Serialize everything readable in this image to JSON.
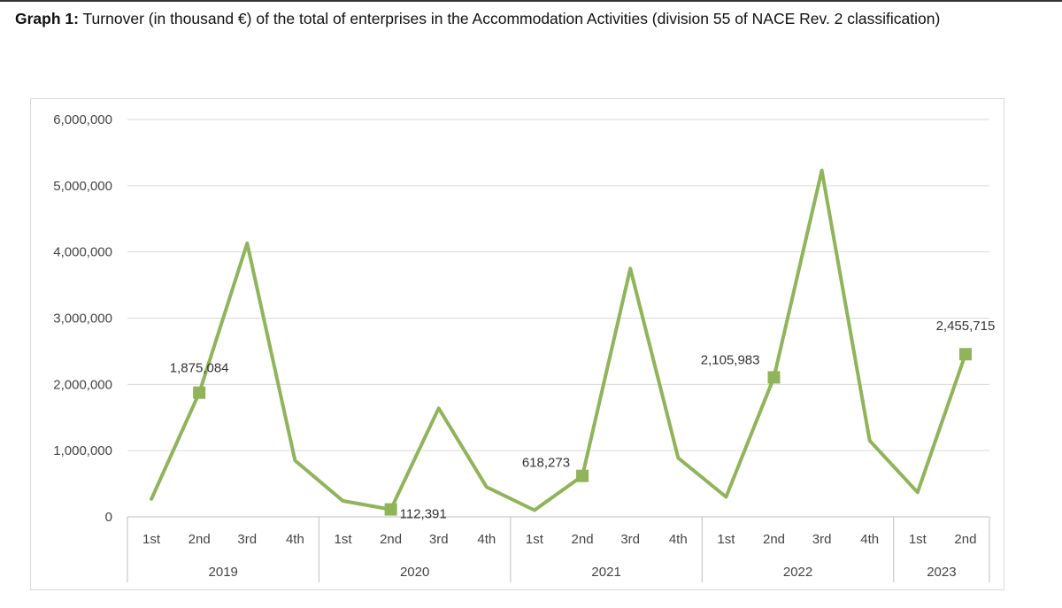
{
  "title": {
    "prefix": "Graph 1:",
    "text": "Turnover (in thousand €) of the total of enterprises in the Accommodation Activities (division 55 of NACE Rev. 2 classification)"
  },
  "colors": {
    "line": "#8fb45a",
    "grid": "#d9d9d9",
    "axis": "#bfbfbf"
  },
  "chart_data": {
    "type": "line",
    "title": "Turnover (in thousand €) of the total of enterprises in the Accommodation Activities (division 55 of NACE Rev. 2 classification)",
    "xlabel": "",
    "ylabel": "",
    "ylim": [
      0,
      6000000
    ],
    "y_ticks": [
      "0",
      "1,000,000",
      "2,000,000",
      "3,000,000",
      "4,000,000",
      "5,000,000",
      "6,000,000"
    ],
    "grid": true,
    "legend": "none",
    "groups": [
      {
        "label": "2019",
        "quarters": [
          "1st",
          "2nd",
          "3rd",
          "4th"
        ]
      },
      {
        "label": "2020",
        "quarters": [
          "1st",
          "2nd",
          "3rd",
          "4th"
        ]
      },
      {
        "label": "2021",
        "quarters": [
          "1st",
          "2nd",
          "3rd",
          "4th"
        ]
      },
      {
        "label": "2022",
        "quarters": [
          "1st",
          "2nd",
          "3rd",
          "4th"
        ]
      },
      {
        "label": "2023",
        "quarters": [
          "1st",
          "2nd"
        ]
      }
    ],
    "series": [
      {
        "values": [
          270000,
          1875084,
          4130000,
          850000,
          240000,
          112391,
          1640000,
          450000,
          100000,
          618273,
          3750000,
          890000,
          300000,
          2105983,
          5230000,
          1150000,
          370000,
          2455715
        ]
      }
    ],
    "labeled_points": [
      {
        "index": 1,
        "text": "1,875,084"
      },
      {
        "index": 5,
        "text": "112,391"
      },
      {
        "index": 9,
        "text": "618,273"
      },
      {
        "index": 13,
        "text": "2,105,983"
      },
      {
        "index": 17,
        "text": "2,455,715"
      }
    ]
  }
}
